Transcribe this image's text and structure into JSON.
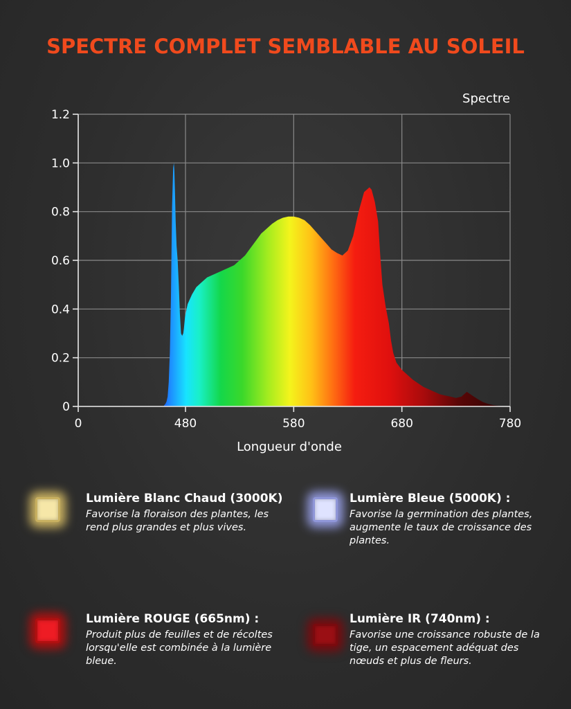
{
  "title": "SPECTRE COMPLET SEMBLABLE AU SOLEIL",
  "chart_data": {
    "type": "area",
    "legend_label": "Spectre",
    "xlabel": "Longueur d'onde",
    "ylabel": "",
    "x_ticks": [
      "0",
      "480",
      "580",
      "680",
      "780"
    ],
    "y_ticks": [
      "0",
      "0.2",
      "0.4",
      "0.6",
      "0.8",
      "1.0",
      "1.2"
    ],
    "ylim": [
      0,
      1.2
    ],
    "grid": true,
    "series": [
      {
        "x": [
          380,
          385,
          390,
          395,
          400,
          405,
          410,
          415,
          420,
          425,
          428,
          430,
          433,
          436,
          440,
          445,
          450,
          455,
          460,
          465,
          470,
          473,
          478,
          482,
          486,
          490,
          495,
          500,
          505,
          510,
          515,
          520,
          525,
          530,
          535,
          540,
          545,
          550,
          555,
          560,
          565,
          570,
          575,
          580,
          585,
          590,
          595,
          600,
          605,
          610,
          615,
          620,
          625,
          630,
          635,
          640,
          645,
          650,
          652,
          655,
          658,
          660,
          662,
          665,
          668,
          670,
          672,
          675,
          680,
          685,
          690,
          695,
          700,
          705,
          710,
          715,
          720,
          725,
          730,
          735,
          740,
          745,
          750,
          755,
          760,
          765,
          770,
          775,
          780
        ],
        "values": [
          0,
          0.005,
          0.01,
          0.02,
          0.04,
          0.1,
          0.22,
          0.45,
          0.82,
          0.98,
          1.0,
          0.97,
          0.88,
          0.76,
          0.66,
          0.6,
          0.5,
          0.38,
          0.3,
          0.29,
          0.3,
          0.32,
          0.37,
          0.42,
          0.46,
          0.49,
          0.51,
          0.53,
          0.54,
          0.55,
          0.56,
          0.57,
          0.58,
          0.6,
          0.62,
          0.65,
          0.68,
          0.71,
          0.73,
          0.75,
          0.765,
          0.775,
          0.78,
          0.78,
          0.775,
          0.765,
          0.745,
          0.72,
          0.695,
          0.67,
          0.645,
          0.63,
          0.62,
          0.64,
          0.7,
          0.8,
          0.88,
          0.9,
          0.89,
          0.84,
          0.76,
          0.62,
          0.5,
          0.41,
          0.34,
          0.27,
          0.22,
          0.18,
          0.15,
          0.13,
          0.11,
          0.095,
          0.08,
          0.07,
          0.06,
          0.05,
          0.045,
          0.04,
          0.035,
          0.04,
          0.06,
          0.045,
          0.03,
          0.018,
          0.01,
          0.005,
          0.002,
          0.001,
          0
        ]
      }
    ]
  },
  "legend": [
    {
      "title": "Lumière Blanc Chaud (3000K)",
      "desc": [
        "Favorise la floraison des plantes, les",
        "rend plus grandes et plus vives."
      ],
      "color": "#f6e7a8",
      "glow": "#c8b060"
    },
    {
      "title": "Lumière Bleue (5000K) :",
      "desc": [
        "Favorise la germination des plantes,",
        "augmente le taux de croissance des",
        "plantes."
      ],
      "color": "#dfe3ff",
      "glow": "#8f96d8"
    },
    {
      "title": "Lumière ROUGE (665nm) :",
      "desc": [
        "Produit plus de feuilles et de récoltes",
        "lorsqu'elle est combinée à la lumière",
        "bleue."
      ],
      "color": "#ee1c24",
      "glow": "#b01010"
    },
    {
      "title": "Lumière IR (740nm) :",
      "desc": [
        "Favorise une croissance robuste de la",
        "tige, un espacement adéquat des",
        "nœuds et plus de fleurs."
      ],
      "color": "#9a0f14",
      "glow": "#7a0a0e"
    }
  ]
}
